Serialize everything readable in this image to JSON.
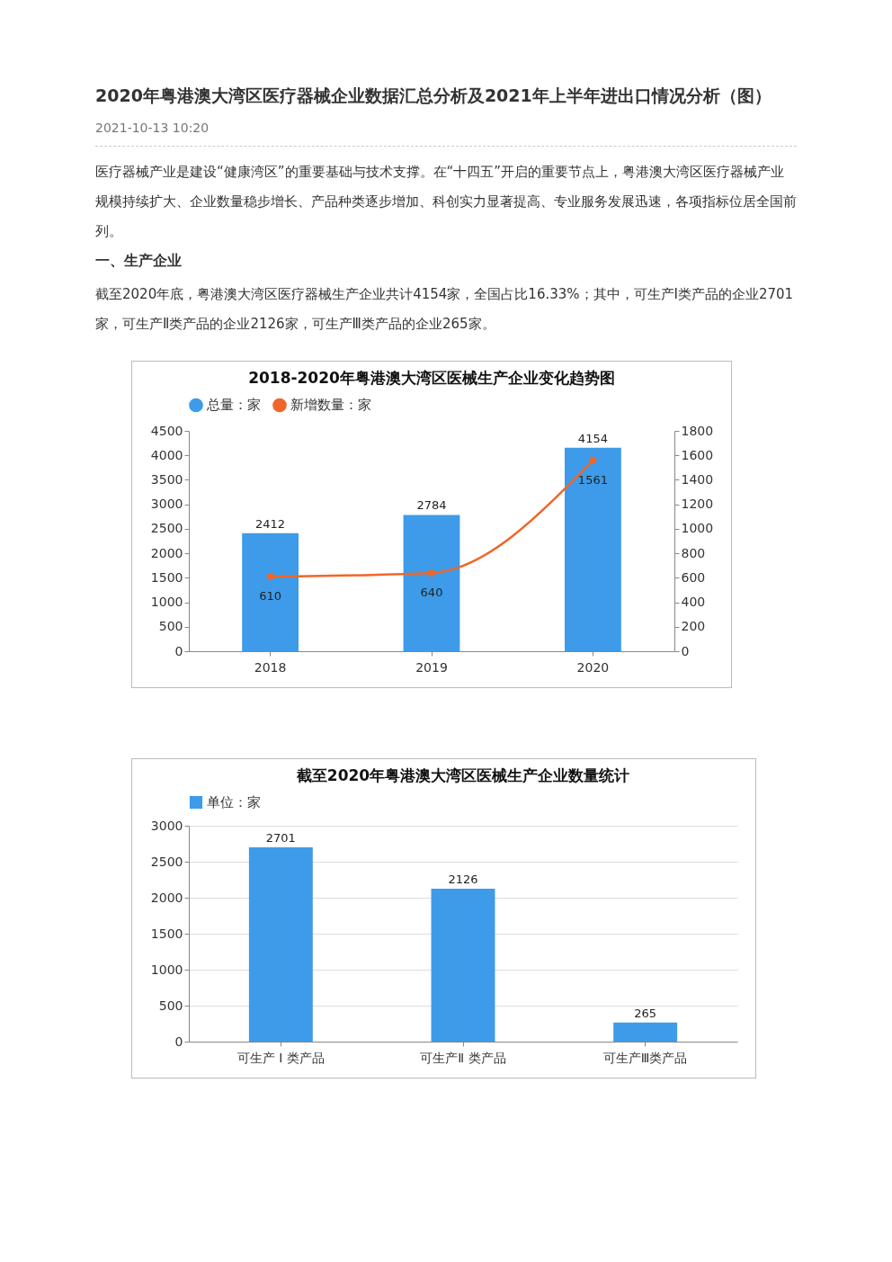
{
  "chart_data": [
    {
      "type": "bar",
      "title": "2018-2020年粤港澳大湾区医械生产企业变化趋势图",
      "annotations": [
        "2020年粤港澳大湾区医疗器械企业数据汇总分析及2021年上半年进出口情况分析（图）",
        "2021-10-13 10:20",
        "医疗器械产业是建设“健康湾区”的重要基础与技术支撑。在“十四五”开启的重要节点上，粤港澳大湾区医疗器械产业规模持续扩大、企业数量稳步增长、产品种类逐步增加、科创实力显著提高、专业服务发展迅速，各项指标位居全国前列。",
        "一、生产企业",
        "截至2020年底，粤港澳大湾区医疗器械生产企业共计4154家，全国占比16.33%；其中，可生产Ⅰ类产品的企业2701家，可生产Ⅱ类产品的企业2126家，可生产Ⅲ类产品的企业265家。"
      ],
      "categories": [
        "2018",
        "2019",
        "2020"
      ],
      "series": [
        {
          "name": "总量：家",
          "color": "#3d9be9",
          "values": [
            2412,
            2784,
            4154
          ]
        },
        {
          "name": "新增数量：家",
          "type": "line",
          "axis": "y2",
          "color": "#f0662a",
          "marker": "circle",
          "values": [
            610,
            640,
            1561
          ]
        }
      ],
      "ylim": [
        0,
        4500
      ],
      "yticks": [
        0,
        500,
        1000,
        1500,
        2000,
        2500,
        3000,
        3500,
        4000,
        4500
      ],
      "y2lim": [
        0,
        1800
      ],
      "y2ticks": [
        0,
        200,
        400,
        600,
        800,
        1000,
        1200,
        1400,
        1600,
        1800
      ],
      "data_labels": true,
      "legend": "top",
      "grid": false
    },
    {
      "type": "bar",
      "title": "截至2020年粤港澳大湾区医械生产企业数量统计",
      "categories": [
        "可生产 Ⅰ 类产品",
        "可生产Ⅱ 类产品",
        "可生产Ⅲ类产品"
      ],
      "series": [
        {
          "name": "单位：家",
          "color": "#3d9be9",
          "values": [
            2701,
            2126,
            265
          ]
        }
      ],
      "ylim": [
        0,
        3000
      ],
      "yticks": [
        0,
        500,
        1000,
        1500,
        2000,
        2500,
        3000
      ],
      "data_labels": true,
      "legend": "top",
      "grid": "y"
    }
  ]
}
